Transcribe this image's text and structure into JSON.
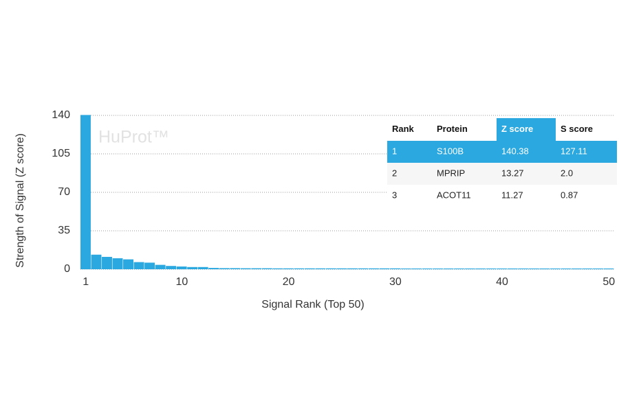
{
  "chart_data": {
    "type": "bar",
    "title": "HuProt™",
    "x_label": "Signal Rank (Top 50)",
    "y_label": "Strength of Signal (Z score)",
    "x": [
      1,
      2,
      3,
      4,
      5,
      6,
      7,
      8,
      9,
      10,
      11,
      12,
      13,
      14,
      15,
      16,
      17,
      18,
      19,
      20,
      21,
      22,
      23,
      24,
      25,
      26,
      27,
      28,
      29,
      30,
      31,
      32,
      33,
      34,
      35,
      36,
      37,
      38,
      39,
      40,
      41,
      42,
      43,
      44,
      45,
      46,
      47,
      48,
      49,
      50
    ],
    "values": [
      140.38,
      13.27,
      11.27,
      10,
      9,
      6.5,
      6,
      4,
      3,
      2.5,
      2,
      2,
      1.2,
      1,
      1,
      0.9,
      0.9,
      0.9,
      0.8,
      0.8,
      0.8,
      0.8,
      0.8,
      0.8,
      0.8,
      0.8,
      0.8,
      0.8,
      0.8,
      0.8,
      0.7,
      0.7,
      0.7,
      0.7,
      0.7,
      0.7,
      0.7,
      0.7,
      0.7,
      0.7,
      0.7,
      0.7,
      0.7,
      0.7,
      0.7,
      0.7,
      0.7,
      0.7,
      0.7,
      0.7
    ],
    "color": "#2aa8df",
    "xlim": [
      0.5,
      50.5
    ],
    "xticks": [
      1,
      10,
      20,
      30,
      40,
      50
    ],
    "ylim": [
      0,
      140
    ],
    "yticks": [
      0,
      35,
      70,
      105,
      140
    ],
    "grid": true
  },
  "table": {
    "columns": [
      "Rank",
      "Protein",
      "Z score",
      "S score"
    ],
    "rows": [
      [
        "1",
        "S100B",
        "140.38",
        "127.11"
      ],
      [
        "2",
        "MPRIP",
        "13.27",
        "2.0"
      ],
      [
        "3",
        "ACOT11",
        "11.27",
        "0.87"
      ]
    ]
  }
}
